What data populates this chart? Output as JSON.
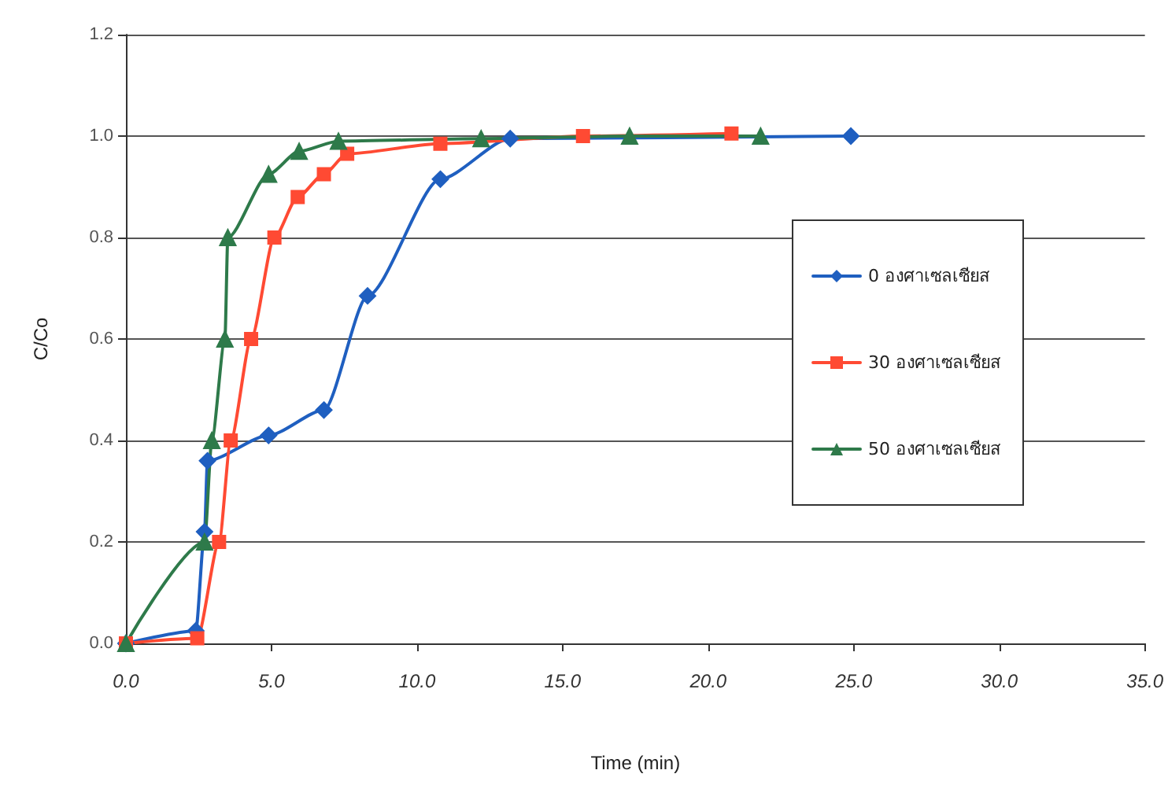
{
  "chart_data": {
    "type": "line",
    "xlabel": "Time (min)",
    "ylabel": "C/Co",
    "xlim": [
      0,
      35
    ],
    "xticks": [
      {
        "value": 0,
        "label": "0.0"
      },
      {
        "value": 5,
        "label": "5.0"
      },
      {
        "value": 10,
        "label": "10.0"
      },
      {
        "value": 15,
        "label": "15.0"
      },
      {
        "value": 20,
        "label": "20.0"
      },
      {
        "value": 25,
        "label": "25.0"
      },
      {
        "value": 30,
        "label": "30.0"
      },
      {
        "value": 35,
        "label": "35.0"
      }
    ],
    "ylim": [
      0,
      1.2
    ],
    "yticks": [
      {
        "value": 0,
        "label": "0.0"
      },
      {
        "value": 0.2,
        "label": "0.2"
      },
      {
        "value": 0.4,
        "label": "0.4"
      },
      {
        "value": 0.6,
        "label": "0.6"
      },
      {
        "value": 0.8,
        "label": "0.8"
      },
      {
        "value": 1,
        "label": "1.0"
      },
      {
        "value": 1.2,
        "label": "1.2"
      }
    ],
    "grid": "y",
    "legend": "right",
    "series": [
      {
        "name": "0 องศาเซลเซียส",
        "color": "#1f5fc0",
        "marker": "diamond",
        "x": [
          0,
          2.4,
          2.7,
          2.8,
          4.9,
          6.8,
          8.3,
          10.8,
          13.2,
          24.9
        ],
        "values": [
          0,
          0.025,
          0.22,
          0.36,
          0.41,
          0.46,
          0.685,
          0.915,
          0.995,
          1.0
        ]
      },
      {
        "name": "30 องศาเซลเซียส",
        "color": "#ff4a33",
        "marker": "square",
        "x": [
          0,
          2.45,
          3.2,
          3.6,
          4.3,
          5.1,
          5.9,
          6.8,
          7.6,
          10.8,
          15.7,
          20.8
        ],
        "values": [
          0,
          0.01,
          0.2,
          0.4,
          0.6,
          0.8,
          0.88,
          0.925,
          0.965,
          0.985,
          1.0,
          1.005
        ]
      },
      {
        "name": "50 องศาเซลเซียส",
        "color": "#2e7a4a",
        "marker": "triangle",
        "x": [
          0,
          2.7,
          2.95,
          3.4,
          3.5,
          4.9,
          5.95,
          7.3,
          12.2,
          17.3,
          21.8
        ],
        "values": [
          0,
          0.2,
          0.4,
          0.6,
          0.8,
          0.925,
          0.97,
          0.99,
          0.995,
          1.0,
          1.0
        ]
      }
    ]
  }
}
